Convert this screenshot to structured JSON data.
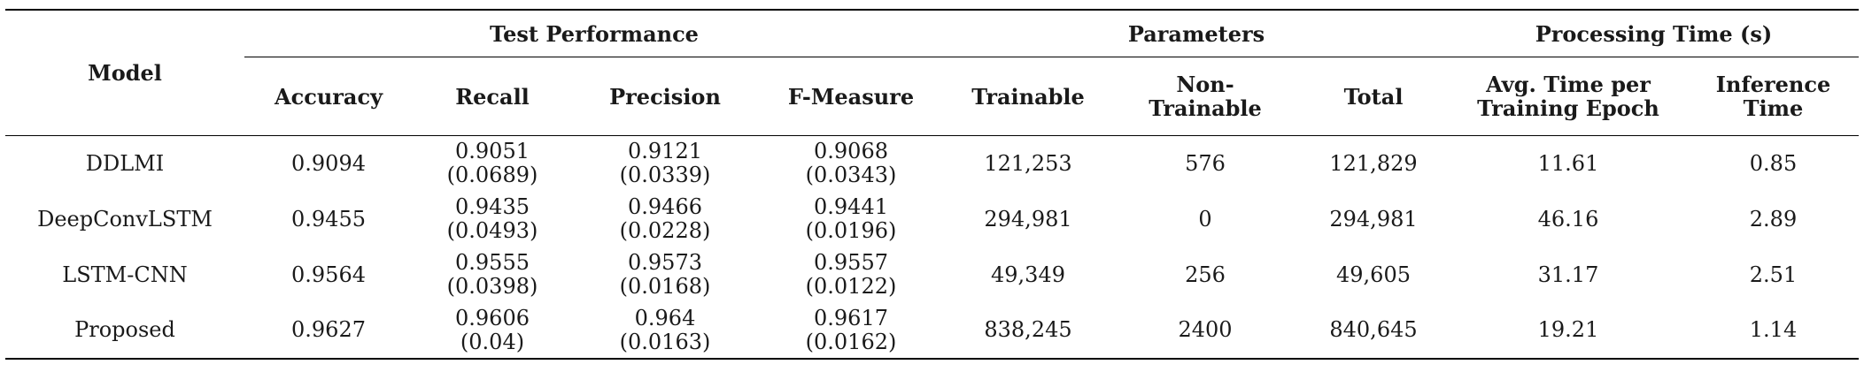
{
  "table": {
    "model_header": "Model",
    "groups": {
      "test_performance": "Test Performance",
      "parameters": "Parameters",
      "processing_time": "Processing Time (s)"
    },
    "columns": {
      "accuracy": "Accuracy",
      "recall": "Recall",
      "precision": "Precision",
      "f_measure": "F-Measure",
      "trainable": "Trainable",
      "non_trainable_l1": "Non-",
      "non_trainable_l2": "Trainable",
      "total": "Total",
      "avg_time_l1": "Avg. Time per",
      "avg_time_l2": "Training Epoch",
      "inference_l1": "Inference",
      "inference_l2": "Time"
    },
    "rows": [
      {
        "model": "DDLMI",
        "accuracy": "0.9094",
        "recall": "0.9051",
        "recall_sd": "(0.0689)",
        "precision": "0.9121",
        "precision_sd": "(0.0339)",
        "f_measure": "0.9068",
        "f_measure_sd": "(0.0343)",
        "trainable": "121,253",
        "non_trainable": "576",
        "total": "121,829",
        "avg_time": "11.61",
        "inference": "0.85"
      },
      {
        "model": "DeepConvLSTM",
        "accuracy": "0.9455",
        "recall": "0.9435",
        "recall_sd": "(0.0493)",
        "precision": "0.9466",
        "precision_sd": "(0.0228)",
        "f_measure": "0.9441",
        "f_measure_sd": "(0.0196)",
        "trainable": "294,981",
        "non_trainable": "0",
        "total": "294,981",
        "avg_time": "46.16",
        "inference": "2.89"
      },
      {
        "model": "LSTM-CNN",
        "accuracy": "0.9564",
        "recall": "0.9555",
        "recall_sd": "(0.0398)",
        "precision": "0.9573",
        "precision_sd": "(0.0168)",
        "f_measure": "0.9557",
        "f_measure_sd": "(0.0122)",
        "trainable": "49,349",
        "non_trainable": "256",
        "total": "49,605",
        "avg_time": "31.17",
        "inference": "2.51"
      },
      {
        "model": "Proposed",
        "accuracy": "0.9627",
        "recall": "0.9606",
        "recall_sd": "(0.04)",
        "precision": "0.964",
        "precision_sd": "(0.0163)",
        "f_measure": "0.9617",
        "f_measure_sd": "(0.0162)",
        "trainable": "838,245",
        "non_trainable": "2400",
        "total": "840,645",
        "avg_time": "19.21",
        "inference": "1.14"
      }
    ]
  }
}
